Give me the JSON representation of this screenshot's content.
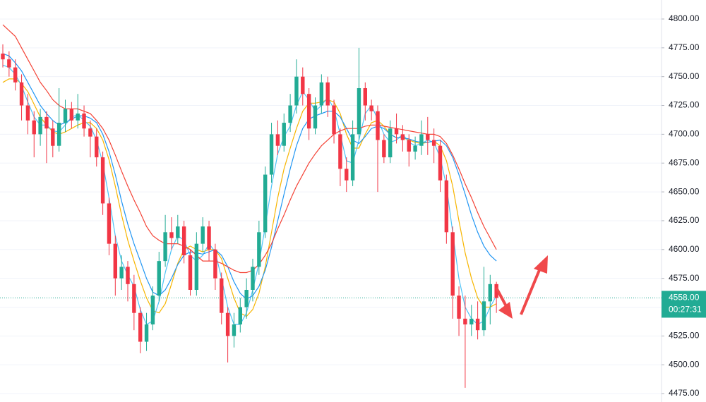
{
  "chart_data": {
    "type": "candlestick",
    "color_up": "#22ab94",
    "color_down": "#f23645",
    "open": [
      4770,
      4765,
      4758,
      4745,
      4725,
      4712,
      4700,
      4715,
      4705,
      4690,
      4710,
      4722,
      4712,
      4718,
      4705,
      4698,
      4680,
      4640,
      4605,
      4575,
      4585,
      4570,
      4545,
      4520,
      4535,
      4560,
      4590,
      4615,
      4610,
      4620,
      4595,
      4565,
      4605,
      4620,
      4600,
      4575,
      4545,
      4525,
      4535,
      4550,
      4565,
      4585,
      4615,
      4665,
      4700,
      4690,
      4710,
      4725,
      4750,
      4735,
      4705,
      4725,
      4745,
      4725,
      4700,
      4670,
      4660,
      4700,
      4740,
      4725,
      4720,
      4695,
      4680,
      4705,
      4700,
      4695,
      4685,
      4690,
      4700,
      4695,
      4690,
      4660,
      4615,
      4560,
      4540,
      4535,
      4540,
      4530,
      4555,
      4570
    ],
    "high": [
      4778,
      4772,
      4765,
      4752,
      4735,
      4720,
      4722,
      4720,
      4712,
      4740,
      4730,
      4728,
      4735,
      4725,
      4712,
      4705,
      4685,
      4645,
      4612,
      4595,
      4590,
      4578,
      4550,
      4545,
      4568,
      4598,
      4630,
      4628,
      4630,
      4625,
      4600,
      4615,
      4628,
      4625,
      4605,
      4580,
      4550,
      4545,
      4558,
      4575,
      4592,
      4625,
      4672,
      4710,
      4712,
      4718,
      4735,
      4765,
      4758,
      4740,
      4732,
      4752,
      4750,
      4730,
      4705,
      4680,
      4712,
      4775,
      4745,
      4730,
      4725,
      4700,
      4712,
      4718,
      4708,
      4700,
      4698,
      4712,
      4715,
      4705,
      4695,
      4665,
      4620,
      4568,
      4560,
      4552,
      4555,
      4585,
      4578,
      4572
    ],
    "low": [
      4758,
      4750,
      4738,
      4712,
      4700,
      4680,
      4690,
      4675,
      4680,
      4685,
      4702,
      4705,
      4705,
      4698,
      4680,
      4672,
      4630,
      4595,
      4560,
      4565,
      4555,
      4530,
      4510,
      4512,
      4530,
      4555,
      4585,
      4600,
      4605,
      4588,
      4560,
      4560,
      4598,
      4590,
      4565,
      4535,
      4502,
      4515,
      4528,
      4540,
      4555,
      4578,
      4610,
      4658,
      4682,
      4685,
      4702,
      4718,
      4725,
      4695,
      4700,
      4718,
      4715,
      4692,
      4655,
      4650,
      4655,
      4695,
      4712,
      4712,
      4650,
      4675,
      4675,
      4692,
      4685,
      4672,
      4678,
      4682,
      4682,
      4675,
      4650,
      4605,
      4540,
      4525,
      4480,
      4525,
      4522,
      4525,
      4535,
      4545
    ],
    "close": [
      4765,
      4758,
      4745,
      4725,
      4712,
      4700,
      4715,
      4705,
      4690,
      4710,
      4722,
      4712,
      4718,
      4705,
      4698,
      4680,
      4640,
      4605,
      4575,
      4585,
      4570,
      4545,
      4520,
      4535,
      4560,
      4590,
      4615,
      4610,
      4620,
      4595,
      4565,
      4605,
      4620,
      4600,
      4575,
      4545,
      4525,
      4535,
      4550,
      4565,
      4585,
      4615,
      4665,
      4700,
      4690,
      4710,
      4725,
      4750,
      4735,
      4705,
      4725,
      4745,
      4725,
      4700,
      4670,
      4660,
      4700,
      4740,
      4725,
      4720,
      4695,
      4680,
      4705,
      4700,
      4695,
      4685,
      4690,
      4700,
      4695,
      4690,
      4660,
      4615,
      4560,
      4540,
      4535,
      4540,
      4530,
      4555,
      4570,
      4558
    ],
    "moving_averages": [
      {
        "color": "#f7b500",
        "values": [
          4745,
          4748,
          4748,
          4744,
          4737,
          4726,
          4715,
          4708,
          4702,
          4700,
          4702,
          4705,
          4708,
          4710,
          4710,
          4705,
          4695,
          4678,
          4655,
          4630,
          4608,
          4590,
          4573,
          4558,
          4547,
          4545,
          4553,
          4570,
          4588,
          4600,
          4603,
          4600,
          4598,
          4600,
          4600,
          4592,
          4575,
          4558,
          4545,
          4542,
          4548,
          4562,
          4585,
          4615,
          4645,
          4670,
          4688,
          4705,
          4720,
          4727,
          4727,
          4728,
          4730,
          4728,
          4718,
          4700,
          4688,
          4688,
          4700,
          4710,
          4712,
          4707,
          4700,
          4697,
          4697,
          4695,
          4693,
          4692,
          4693,
          4694,
          4690,
          4677,
          4655,
          4625,
          4597,
          4575,
          4558,
          4550,
          4550,
          4553
        ]
      },
      {
        "color": "#4fc3f7",
        "values": [
          4760,
          4758,
          4752,
          4742,
          4728,
          4715,
          4708,
          4708,
          4703,
          4702,
          4708,
          4715,
          4717,
          4712,
          4707,
          4695,
          4675,
          4645,
          4612,
          4590,
          4578,
          4568,
          4548,
          4535,
          4538,
          4555,
          4580,
          4600,
          4612,
          4608,
          4595,
          4590,
          4595,
          4605,
          4598,
          4575,
          4550,
          4535,
          4535,
          4545,
          4565,
          4588,
          4620,
          4655,
          4683,
          4698,
          4707,
          4725,
          4737,
          4730,
          4720,
          4725,
          4732,
          4722,
          4700,
          4677,
          4675,
          4695,
          4718,
          4725,
          4713,
          4700,
          4693,
          4695,
          4700,
          4693,
          4690,
          4692,
          4695,
          4693,
          4680,
          4655,
          4615,
          4575,
          4550,
          4540,
          4535,
          4538,
          4550,
          4560
        ]
      },
      {
        "color": "#2196f3",
        "values": [
          4770,
          4768,
          4762,
          4755,
          4745,
          4735,
          4725,
          4718,
          4712,
          4708,
          4710,
          4713,
          4716,
          4716,
          4714,
          4710,
          4700,
          4685,
          4665,
          4642,
          4622,
          4605,
          4590,
          4575,
          4563,
          4560,
          4565,
          4575,
          4587,
          4595,
          4598,
          4597,
          4596,
          4598,
          4600,
          4595,
          4585,
          4572,
          4562,
          4557,
          4560,
          4568,
          4582,
          4602,
          4625,
          4648,
          4670,
          4690,
          4705,
          4713,
          4716,
          4718,
          4720,
          4720,
          4715,
          4705,
          4695,
          4692,
          4698,
          4705,
          4707,
          4705,
          4700,
          4697,
          4697,
          4696,
          4694,
          4693,
          4693,
          4694,
          4695,
          4690,
          4680,
          4665,
          4648,
          4630,
          4615,
          4603,
          4595,
          4590
        ]
      },
      {
        "color": "#f44336",
        "values": [
          4795,
          4790,
          4785,
          4775,
          4765,
          4755,
          4745,
          4738,
          4730,
          4725,
          4722,
          4722,
          4722,
          4720,
          4718,
          4712,
          4705,
          4695,
          4682,
          4668,
          4655,
          4643,
          4632,
          4620,
          4612,
          4608,
          4605,
          4605,
          4605,
          4603,
          4600,
          4595,
          4590,
          4590,
          4590,
          4588,
          4585,
          4582,
          4580,
          4580,
          4582,
          4587,
          4595,
          4605,
          4618,
          4630,
          4643,
          4655,
          4665,
          4675,
          4683,
          4690,
          4695,
          4700,
          4703,
          4705,
          4705,
          4705,
          4707,
          4708,
          4708,
          4707,
          4706,
          4705,
          4704,
          4703,
          4702,
          4701,
          4700,
          4700,
          4698,
          4692,
          4682,
          4670,
          4657,
          4645,
          4632,
          4620,
          4610,
          4600
        ]
      }
    ],
    "ylim": [
      4467.7,
      4816.5
    ],
    "yticks": [
      {
        "value": 4475,
        "label": "4475.00"
      },
      {
        "value": 4500,
        "label": "4500.00"
      },
      {
        "value": 4525,
        "label": "4525.00"
      },
      {
        "value": 4550,
        "label": "4550.00"
      },
      {
        "value": 4575,
        "label": "4575.00"
      },
      {
        "value": 4600,
        "label": "4600.00"
      },
      {
        "value": 4625,
        "label": "4625.00"
      },
      {
        "value": 4650,
        "label": "4650.00"
      },
      {
        "value": 4675,
        "label": "4675.00"
      },
      {
        "value": 4700,
        "label": "4700.00"
      },
      {
        "value": 4725,
        "label": "4725.00"
      },
      {
        "value": 4750,
        "label": "4750.00"
      },
      {
        "value": 4775,
        "label": "4775.00"
      },
      {
        "value": 4800,
        "label": "4800.00"
      }
    ],
    "grid": true,
    "last_price": {
      "value": 4558,
      "label": "4558.00"
    },
    "countdown": "00:27:31"
  }
}
